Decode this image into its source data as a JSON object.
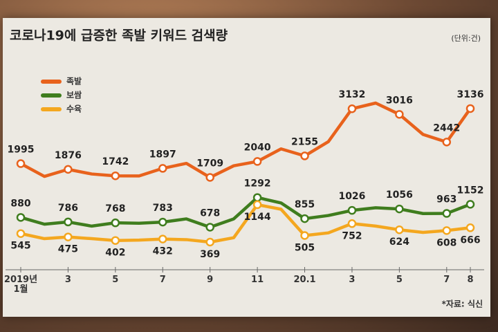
{
  "chart_data": {
    "type": "line",
    "title": "코로나19에 급증한 족발 키워드 검색량",
    "unit": "(단위:건)",
    "source": "*자료: 식신",
    "categories": [
      "2019년\n1월",
      null,
      "3",
      null,
      "5",
      null,
      "7",
      null,
      "9",
      null,
      "11",
      null,
      "20.1",
      null,
      "3",
      null,
      "5",
      null,
      "7",
      "8"
    ],
    "series": [
      {
        "name": "족발",
        "color": "#e8621c",
        "values": [
          1995,
          1730,
          1876,
          1780,
          1742,
          1740,
          1897,
          2000,
          1709,
          1950,
          2040,
          2300,
          2155,
          2450,
          3132,
          3250,
          3016,
          2600,
          2442,
          3136
        ],
        "value_labels": [
          "1995",
          null,
          "1876",
          null,
          "1742",
          null,
          "1897",
          null,
          "1709",
          null,
          "2040",
          null,
          "2155",
          null,
          "3132",
          null,
          "3016",
          null,
          "2442",
          "3136"
        ]
      },
      {
        "name": "보쌈",
        "color": "#3f7d1e",
        "values": [
          880,
          740,
          786,
          700,
          768,
          760,
          783,
          850,
          678,
          850,
          1292,
          1180,
          855,
          920,
          1026,
          1080,
          1056,
          960,
          963,
          1152
        ],
        "value_labels": [
          "880",
          null,
          "786",
          null,
          "768",
          null,
          "783",
          null,
          "678",
          null,
          "1292",
          null,
          "855",
          null,
          "1026",
          null,
          "1056",
          null,
          "963",
          "1152"
        ]
      },
      {
        "name": "수육",
        "color": "#f4a71f",
        "values": [
          545,
          440,
          475,
          440,
          402,
          410,
          432,
          420,
          369,
          460,
          1144,
          1050,
          505,
          560,
          752,
          700,
          624,
          570,
          608,
          666
        ],
        "value_labels": [
          "545",
          null,
          "475",
          null,
          "402",
          null,
          "432",
          null,
          "369",
          null,
          "1144",
          null,
          "505",
          null,
          "752",
          null,
          "624",
          null,
          "608",
          "666"
        ]
      }
    ]
  }
}
